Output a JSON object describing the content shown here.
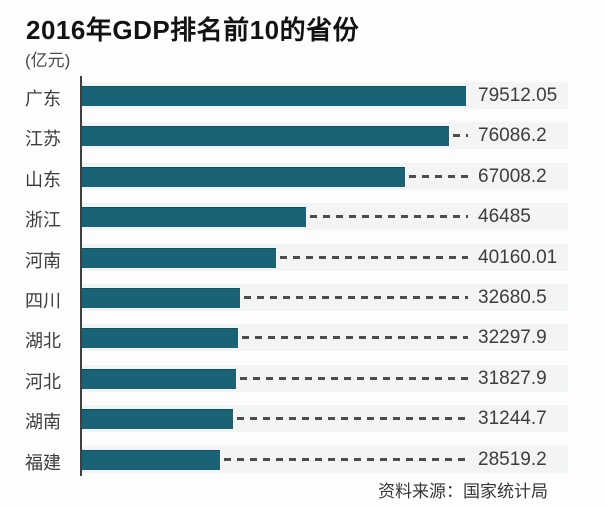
{
  "chart": {
    "title": "2016年GDP排名前10的省份",
    "unit": "(亿元)",
    "source": "资料来源：国家统计局"
  },
  "chart_data": {
    "type": "bar",
    "orientation": "horizontal",
    "title": "2016年GDP排名前10的省份",
    "unit_label": "(亿元)",
    "categories": [
      "广东",
      "江苏",
      "山东",
      "浙江",
      "河南",
      "四川",
      "湖北",
      "河北",
      "湖南",
      "福建"
    ],
    "values": [
      79512.05,
      76086.2,
      67008.2,
      46485,
      40160.01,
      32680.5,
      32297.9,
      31827.9,
      31244.7,
      28519.2
    ],
    "value_labels": [
      "79512.05",
      "76086.2",
      "67008.2",
      "46485",
      "40160.01",
      "32680.5",
      "32297.9",
      "31827.9",
      "31244.7",
      "28519.2"
    ],
    "xlim": [
      0,
      80000
    ],
    "grid": false,
    "legend": false,
    "data_labels_position": "right-of-bar-with-dashed-leader",
    "bar_color": "#1a6276",
    "leader_line_color": "#4c4c4c",
    "axis_line_color": "#3f3f3f",
    "source": "资料来源：国家统计局"
  }
}
